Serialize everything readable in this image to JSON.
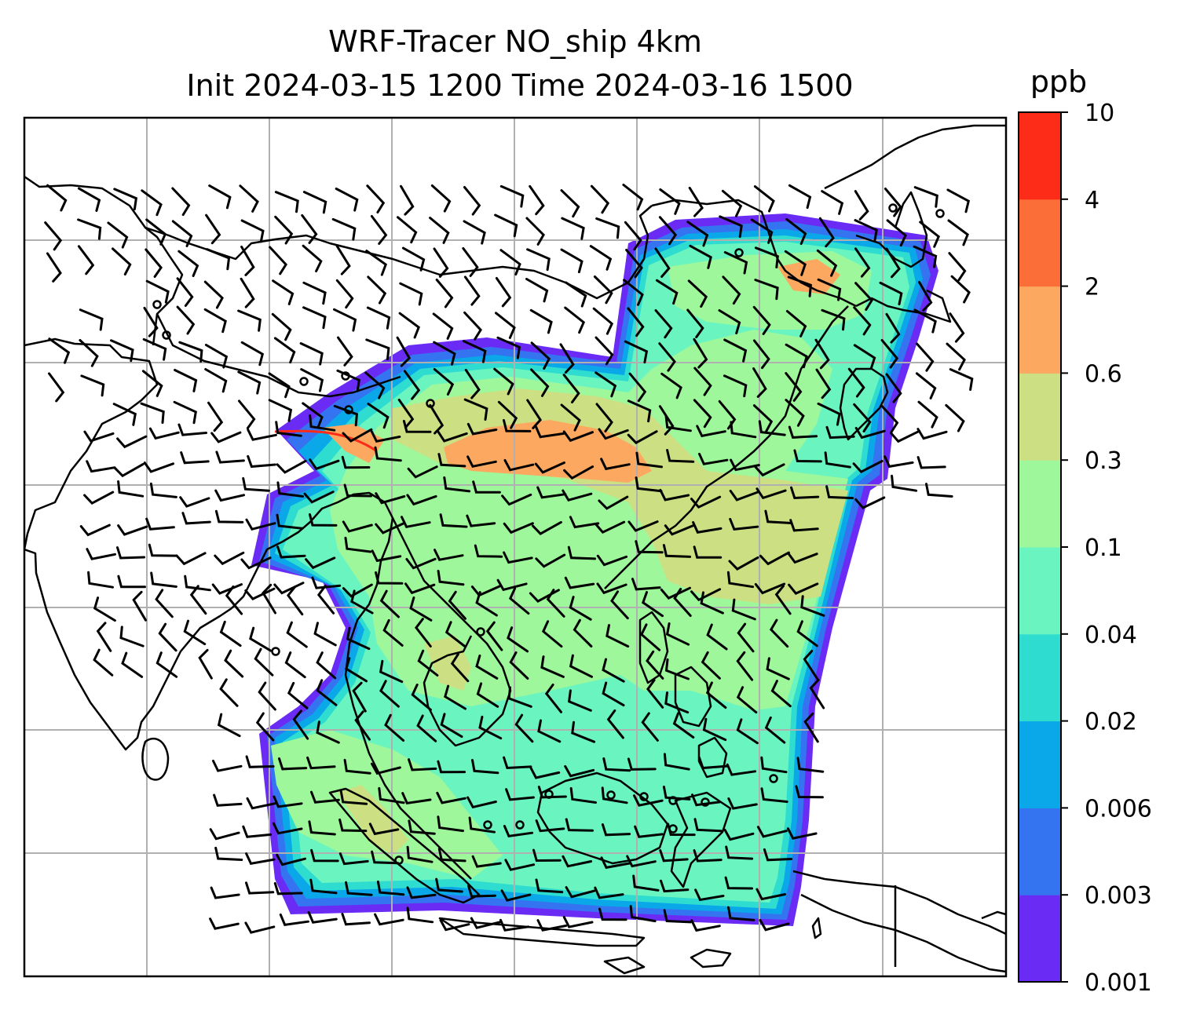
{
  "title": {
    "line1": "WRF-Tracer NO_ship 4km",
    "line2": "Init 2024-03-15 1200 Time 2024-03-16 1500"
  },
  "colorbar": {
    "unit": "ppb",
    "levels": [
      "0.001",
      "0.003",
      "0.006",
      "0.02",
      "0.04",
      "0.1",
      "0.3",
      "0.6",
      "2",
      "4",
      "10"
    ],
    "colors": [
      "#6a2cf5",
      "#3574f0",
      "#0aa8e8",
      "#2fdcd0",
      "#6af5c0",
      "#9ef79a",
      "#cce083",
      "#fca860",
      "#fc6e38",
      "#fc2c18"
    ]
  },
  "map": {
    "gridlines": true,
    "coastlines": true,
    "wind_barbs": true
  }
}
